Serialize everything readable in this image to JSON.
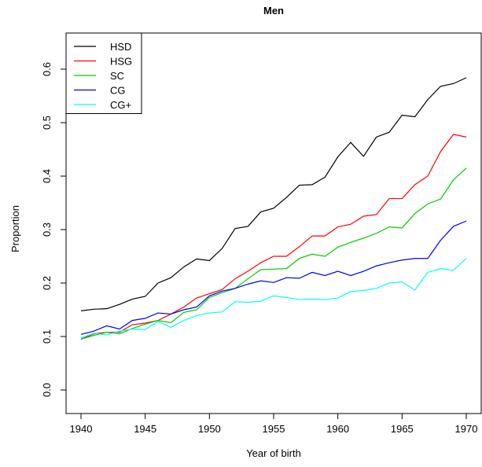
{
  "chart_data": {
    "type": "line",
    "title": "Men",
    "xlabel": "Year of birth",
    "ylabel": "Proportion",
    "xlim": [
      1940,
      1970
    ],
    "ylim": [
      0.0,
      0.6
    ],
    "xticks": [
      1940,
      1945,
      1950,
      1955,
      1960,
      1965,
      1970
    ],
    "yticks": [
      0.0,
      0.1,
      0.2,
      0.3,
      0.4,
      0.5,
      0.6
    ],
    "ytick_labels": [
      "0.0",
      "0.1",
      "0.2",
      "0.3",
      "0.4",
      "0.5",
      "0.6"
    ],
    "grid": false,
    "legend_position": "top-left",
    "x": [
      1940,
      1941,
      1942,
      1943,
      1944,
      1945,
      1946,
      1947,
      1948,
      1949,
      1950,
      1951,
      1952,
      1953,
      1954,
      1955,
      1956,
      1957,
      1958,
      1959,
      1960,
      1961,
      1962,
      1963,
      1964,
      1965,
      1966,
      1967,
      1968,
      1969,
      1970
    ],
    "series": [
      {
        "name": "HSD",
        "color": "#000000",
        "values": [
          0.148,
          0.151,
          0.152,
          0.16,
          0.17,
          0.175,
          0.2,
          0.21,
          0.23,
          0.245,
          0.242,
          0.265,
          0.302,
          0.306,
          0.333,
          0.34,
          0.36,
          0.383,
          0.384,
          0.398,
          0.436,
          0.463,
          0.437,
          0.473,
          0.482,
          0.514,
          0.511,
          0.543,
          0.568,
          0.573,
          0.584
        ]
      },
      {
        "name": "HSG",
        "color": "#ff0000",
        "values": [
          0.095,
          0.105,
          0.108,
          0.108,
          0.122,
          0.125,
          0.13,
          0.142,
          0.155,
          0.172,
          0.18,
          0.188,
          0.208,
          0.222,
          0.238,
          0.25,
          0.25,
          0.268,
          0.288,
          0.288,
          0.305,
          0.31,
          0.325,
          0.328,
          0.358,
          0.358,
          0.384,
          0.4,
          0.446,
          0.478,
          0.473
        ]
      },
      {
        "name": "SC",
        "color": "#00cd00",
        "values": [
          0.095,
          0.102,
          0.108,
          0.105,
          0.115,
          0.123,
          0.13,
          0.126,
          0.145,
          0.15,
          0.173,
          0.182,
          0.19,
          0.208,
          0.225,
          0.226,
          0.227,
          0.246,
          0.254,
          0.25,
          0.267,
          0.276,
          0.284,
          0.293,
          0.305,
          0.303,
          0.33,
          0.348,
          0.357,
          0.393,
          0.415
        ]
      },
      {
        "name": "CG",
        "color": "#0000ff",
        "values": [
          0.104,
          0.11,
          0.12,
          0.114,
          0.13,
          0.134,
          0.144,
          0.142,
          0.15,
          0.155,
          0.176,
          0.185,
          0.19,
          0.198,
          0.204,
          0.201,
          0.21,
          0.209,
          0.22,
          0.214,
          0.222,
          0.214,
          0.222,
          0.232,
          0.238,
          0.243,
          0.246,
          0.246,
          0.28,
          0.306,
          0.316
        ]
      },
      {
        "name": "CG+",
        "color": "#00ffff",
        "values": [
          0.097,
          0.106,
          0.103,
          0.11,
          0.114,
          0.113,
          0.128,
          0.117,
          0.13,
          0.139,
          0.144,
          0.146,
          0.165,
          0.164,
          0.166,
          0.176,
          0.173,
          0.169,
          0.17,
          0.169,
          0.172,
          0.184,
          0.186,
          0.19,
          0.2,
          0.202,
          0.187,
          0.22,
          0.227,
          0.224,
          0.246
        ]
      }
    ]
  }
}
